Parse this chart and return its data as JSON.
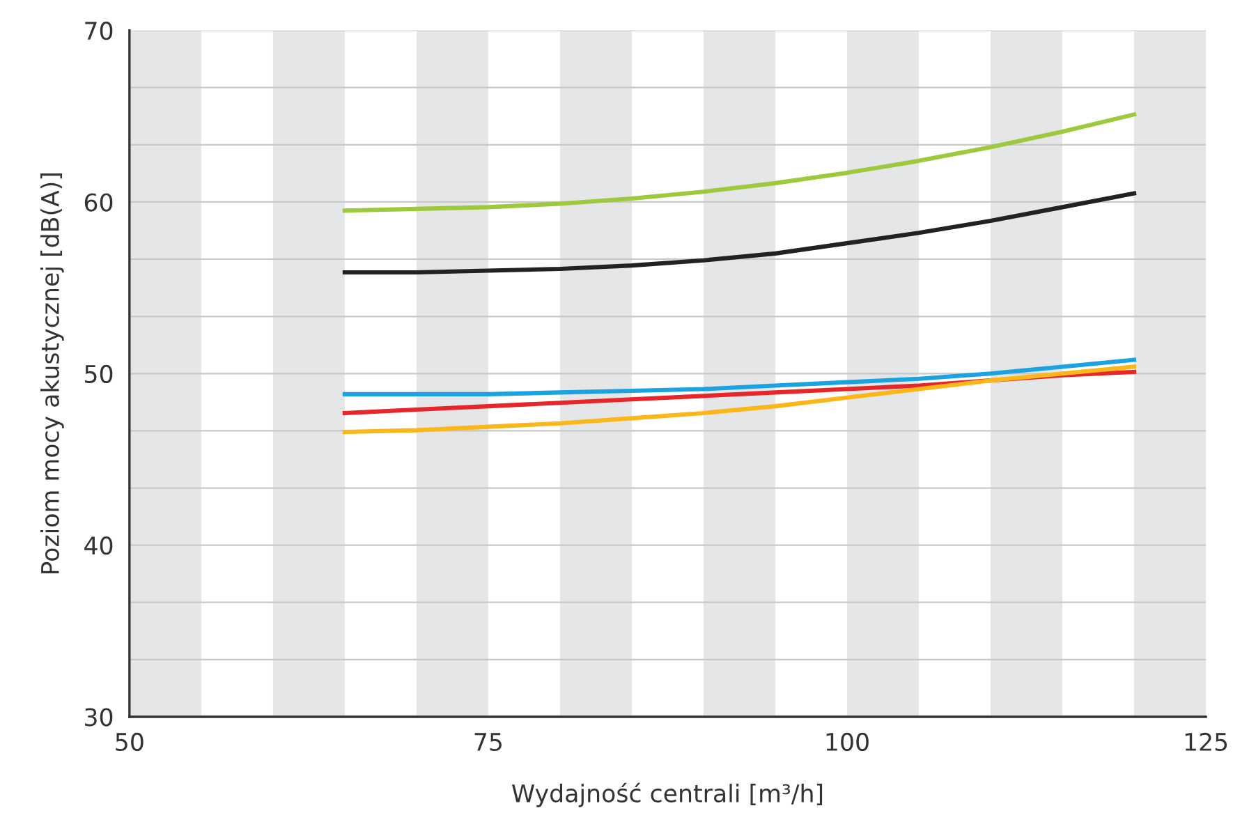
{
  "chart_data": {
    "type": "line",
    "xlabel": "Wydajność centrali [m³/h]",
    "ylabel": "Poziom mocy akustycznej [dB(A)]",
    "x": [
      65,
      70,
      75,
      80,
      85,
      90,
      95,
      100,
      105,
      110,
      115,
      120
    ],
    "series": [
      {
        "color": "#9dc93c",
        "values": [
          59.5,
          59.6,
          59.7,
          59.9,
          60.2,
          60.6,
          61.1,
          61.7,
          62.4,
          63.2,
          64.1,
          65.1
        ]
      },
      {
        "color": "#222222",
        "values": [
          55.9,
          55.9,
          56.0,
          56.1,
          56.3,
          56.6,
          57.0,
          57.6,
          58.2,
          58.9,
          59.7,
          60.5
        ]
      },
      {
        "color": "#1aa3e0",
        "values": [
          48.8,
          48.8,
          48.8,
          48.9,
          49.0,
          49.1,
          49.3,
          49.5,
          49.7,
          50.0,
          50.4,
          50.8
        ]
      },
      {
        "color": "#e8262a",
        "values": [
          47.7,
          47.9,
          48.1,
          48.3,
          48.5,
          48.7,
          48.9,
          49.1,
          49.3,
          49.6,
          49.9,
          50.1
        ]
      },
      {
        "color": "#fbb71a",
        "values": [
          46.6,
          46.7,
          46.9,
          47.1,
          47.4,
          47.7,
          48.1,
          48.6,
          49.1,
          49.6,
          50.0,
          50.4
        ]
      }
    ],
    "xlim": [
      50,
      125
    ],
    "xticks": [
      50,
      75,
      100,
      125
    ],
    "ylim": [
      30,
      70
    ],
    "yticks": [
      30,
      {
        "value": 33.33,
        "label": null
      },
      {
        "value": 36.67,
        "label": null
      },
      40,
      {
        "value": 43.33,
        "label": null
      },
      {
        "value": 46.67,
        "label": null
      },
      50,
      {
        "value": 53.33,
        "label": null
      },
      {
        "value": 56.67,
        "label": null
      },
      60,
      {
        "value": 63.33,
        "label": null
      },
      {
        "value": 66.67,
        "label": null
      },
      70
    ],
    "grid": "y",
    "marker": "none",
    "line_style": "solid",
    "legend": false,
    "bands": [
      {
        "axis": "x",
        "from": 50,
        "to": 55,
        "color": "#e5e6e8"
      },
      {
        "axis": "x",
        "from": 60,
        "to": 65,
        "color": "#e5e6e8"
      },
      {
        "axis": "x",
        "from": 70,
        "to": 75,
        "color": "#e5e6e8"
      },
      {
        "axis": "x",
        "from": 80,
        "to": 85,
        "color": "#e5e6e8"
      },
      {
        "axis": "x",
        "from": 90,
        "to": 95,
        "color": "#e5e6e8"
      },
      {
        "axis": "x",
        "from": 100,
        "to": 105,
        "color": "#e5e6e8"
      },
      {
        "axis": "x",
        "from": 110,
        "to": 115,
        "color": "#e5e6e8"
      },
      {
        "axis": "x",
        "from": 120,
        "to": 125,
        "color": "#e5e6e8"
      }
    ]
  }
}
